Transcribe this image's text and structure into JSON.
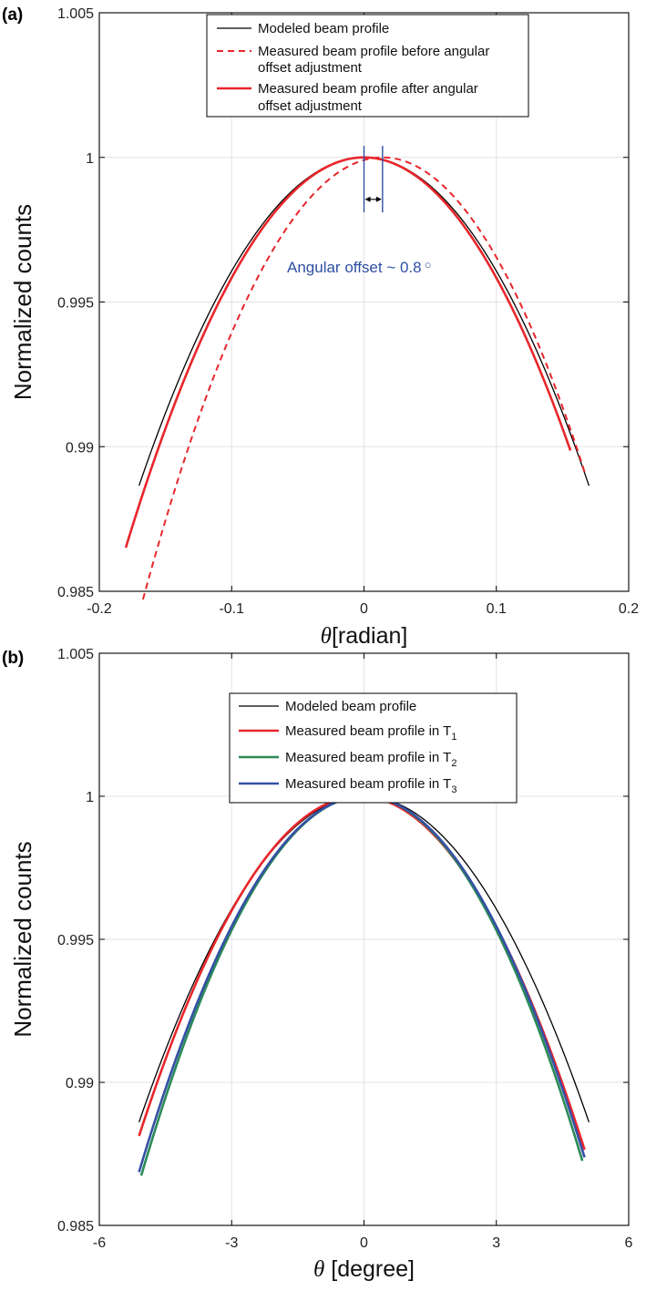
{
  "chart_data": [
    {
      "panel_label": "(a)",
      "type": "line",
      "xlabel_symbol": "θ",
      "xlabel_unit": "[radian]",
      "ylabel": "Normalized counts",
      "xlim": [
        -0.2,
        0.2
      ],
      "ylim": [
        0.985,
        1.005
      ],
      "x_ticks": [
        -0.2,
        -0.1,
        0,
        0.1,
        0.2
      ],
      "x_tick_labels": [
        "-0.2",
        "-0.1",
        "0",
        "0.1",
        "0.2"
      ],
      "y_ticks": [
        0.985,
        0.99,
        0.995,
        1,
        1.005
      ],
      "y_tick_labels": [
        "0.985",
        "0.99",
        "0.995",
        "1",
        "1.005"
      ],
      "grid": true,
      "legend_position": "top-center",
      "series": [
        {
          "name": "Modeled beam profile",
          "legend_lines": [
            "Modeled beam profile"
          ],
          "color": "#000000",
          "style": "solid",
          "width": 1.3,
          "peak_x": 0.0,
          "peak_y": 1.0,
          "curvature": 0.3927,
          "x_range": [
            -0.17,
            0.17
          ]
        },
        {
          "name": "Measured beam profile before angular offset adjustment",
          "legend_lines": [
            "Measured beam profile before angular",
            "offset adjustment"
          ],
          "color": "#e8262b",
          "style": "dashed",
          "width": 2,
          "peak_x": 0.014,
          "peak_y": 1.0,
          "curvature": 0.4664,
          "x_range": [
            -0.167,
            0.167
          ]
        },
        {
          "name": "Measured beam profile after angular offset adjustment",
          "legend_lines": [
            "Measured beam profile after angular",
            "offset adjustment"
          ],
          "color": "#e8262b",
          "style": "solid",
          "width": 2.6,
          "peak_x": 0.0,
          "peak_y": 1.0,
          "curvature": 0.4164,
          "x_range": [
            -0.18,
            0.156
          ]
        }
      ],
      "annotation": {
        "text": "Angular offset ~ 0.8",
        "degree_symbol": "○",
        "marker_x": [
          0.0,
          0.014
        ],
        "marker_y": [
          0.9981,
          1.0004
        ],
        "arrow_y": 0.99855,
        "color": "#2e4fa3"
      }
    },
    {
      "panel_label": "(b)",
      "type": "line",
      "xlabel_symbol": "θ",
      "xlabel_unit": " [degree]",
      "ylabel": "Normalized counts",
      "xlim": [
        -6,
        6
      ],
      "ylim": [
        0.985,
        1.005
      ],
      "x_ticks": [
        -6,
        -3,
        0,
        3,
        6
      ],
      "x_tick_labels": [
        "-6",
        "-3",
        "0",
        "3",
        "6"
      ],
      "y_ticks": [
        0.985,
        0.99,
        0.995,
        1,
        1.005
      ],
      "y_tick_labels": [
        "0.985",
        "0.99",
        "0.995",
        "1",
        "1.005"
      ],
      "grid": true,
      "legend_position": "top-center",
      "series": [
        {
          "name": "Modeled beam profile",
          "legend_main": "Modeled beam profile",
          "legend_sub": "",
          "color": "#000000",
          "width": 1.3,
          "peak_x": 0.0,
          "peak_y": 1.0,
          "curvature": 0.000438,
          "x_range": [
            -5.1,
            5.1
          ]
        },
        {
          "name": "Measured beam profile in T1",
          "legend_main": "Measured beam profile in T",
          "legend_sub": "1",
          "color": "#e8262b",
          "width": 2.6,
          "peak_x": -0.1,
          "peak_y": 1.0,
          "curvature": 0.000475,
          "x_range": [
            -5.1,
            5.0
          ]
        },
        {
          "name": "Measured beam profile in T2",
          "legend_main": "Measured beam profile in T",
          "legend_sub": "2",
          "color": "#2a8a57",
          "width": 2.6,
          "peak_x": 0.0,
          "peak_y": 1.0,
          "curvature": 0.00052,
          "x_range": [
            -5.05,
            4.95
          ]
        },
        {
          "name": "Measured beam profile in T3",
          "legend_main": "Measured beam profile in T",
          "legend_sub": "3",
          "color": "#3550a5",
          "width": 2.6,
          "peak_x": 0.0,
          "peak_y": 1.0,
          "curvature": 0.000505,
          "x_range": [
            -5.1,
            5.0
          ]
        }
      ]
    }
  ]
}
